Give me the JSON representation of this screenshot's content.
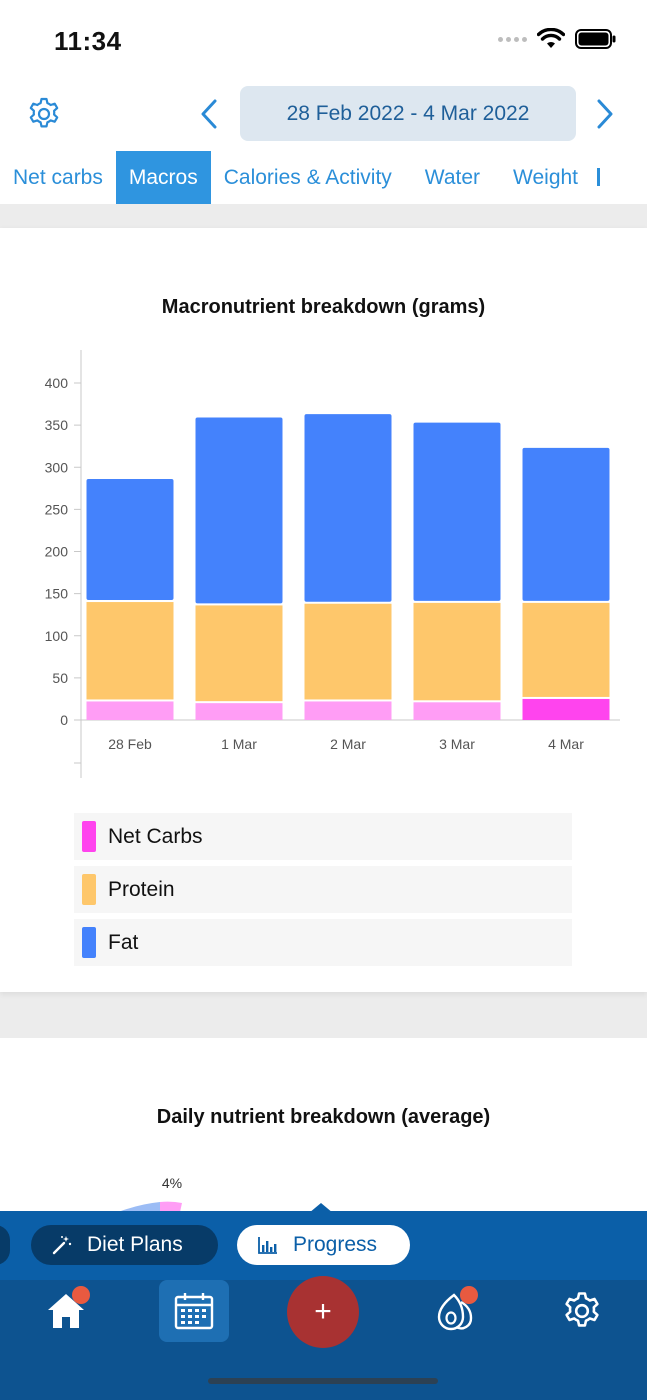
{
  "status": {
    "time": "11:34"
  },
  "header": {
    "date_range": "28 Feb 2022 - 4 Mar 2022",
    "tabs": [
      {
        "label": "Net carbs"
      },
      {
        "label": "Macros"
      },
      {
        "label": "Calories & Activity"
      },
      {
        "label": "Water"
      },
      {
        "label": "Weight"
      }
    ],
    "active_tab": "Macros"
  },
  "chart1": {
    "title": "Macronutrient breakdown (grams)",
    "legend": [
      {
        "label": "Net Carbs",
        "color": "#ff44ee"
      },
      {
        "label": "Protein",
        "color": "#fec76b"
      },
      {
        "label": "Fat",
        "color": "#4482fc"
      }
    ]
  },
  "chart_data": {
    "type": "bar",
    "stacked": true,
    "title": "Macronutrient breakdown (grams)",
    "categories": [
      "28 Feb",
      "1 Mar",
      "2 Mar",
      "3 Mar",
      "4 Mar"
    ],
    "series": [
      {
        "name": "Net Carbs",
        "values": [
          22,
          20,
          22,
          21,
          25
        ],
        "color": "#ff44ee",
        "faded_color": "#ff9df5"
      },
      {
        "name": "Protein",
        "values": [
          118,
          116,
          116,
          118,
          114
        ],
        "color": "#fec76b"
      },
      {
        "name": "Fat",
        "values": [
          146,
          223,
          225,
          214,
          184
        ],
        "color": "#4482fc"
      }
    ],
    "highlighted_category": "4 Mar",
    "ylim": [
      0,
      400
    ],
    "yticks": [
      0,
      50,
      100,
      150,
      200,
      250,
      300,
      350,
      400
    ],
    "grid": false,
    "legend_position": "bottom"
  },
  "chart2": {
    "title": "Daily nutrient breakdown (average)",
    "peek_label": "4%"
  },
  "bottom": {
    "pills": [
      {
        "label": "Diet Plans",
        "icon": "magic-wand-icon"
      },
      {
        "label": "Progress",
        "icon": "bar-chart-icon"
      }
    ],
    "dock": [
      {
        "name": "home-icon",
        "badge": true
      },
      {
        "name": "calendar-icon",
        "badge": false
      },
      {
        "name": "add-icon",
        "label": "+"
      },
      {
        "name": "fruit-icon",
        "badge": true
      },
      {
        "name": "settings-icon",
        "badge": false
      }
    ]
  }
}
